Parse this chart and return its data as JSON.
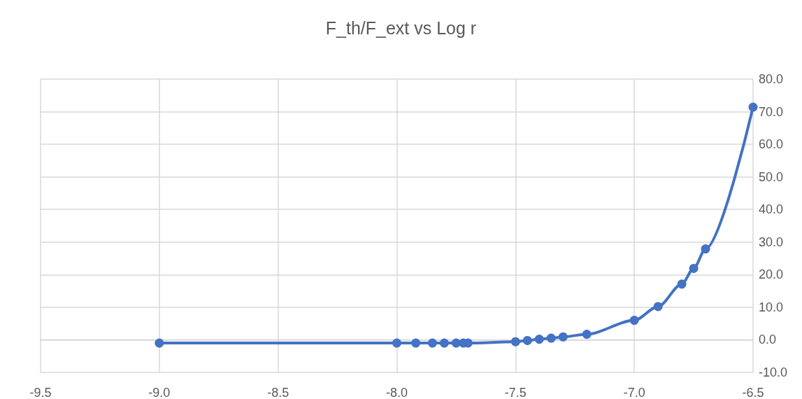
{
  "chart_data": {
    "type": "line",
    "title": "F_th/F_ext vs Log r",
    "x": [
      -9.0,
      -8.0,
      -7.92,
      -7.85,
      -7.8,
      -7.75,
      -7.72,
      -7.7,
      -7.5,
      -7.45,
      -7.4,
      -7.35,
      -7.3,
      -7.2,
      -7.0,
      -6.9,
      -6.8,
      -6.75,
      -6.7,
      -6.5
    ],
    "series": [
      {
        "color": "#4472c4",
        "values": [
          -1.0,
          -1.0,
          -1.0,
          -1.0,
          -1.0,
          -1.0,
          -1.0,
          -1.0,
          -0.6,
          -0.2,
          0.2,
          0.5,
          0.9,
          1.7,
          6.0,
          10.2,
          17.1,
          21.9,
          27.9,
          71.4
        ]
      }
    ],
    "xlim": [
      -9.5,
      -6.5
    ],
    "xticks": [
      -9.5,
      {
        "value": -9,
        "label": "-9.0"
      },
      -8.5,
      {
        "value": -8,
        "label": "-8.0"
      },
      -7.5,
      {
        "value": -7,
        "label": "-7.0"
      },
      -6.5
    ],
    "ylim": [
      -10,
      80
    ],
    "yticks": [
      {
        "value": -10,
        "label": "-10.0"
      },
      {
        "value": 0,
        "label": "0.0"
      },
      {
        "value": 10,
        "label": "10.0"
      },
      {
        "value": 20,
        "label": "20.0"
      },
      {
        "value": 30,
        "label": "30.0"
      },
      {
        "value": 40,
        "label": "40.0"
      },
      {
        "value": 50,
        "label": "50.0"
      },
      {
        "value": 60,
        "label": "60.0"
      },
      {
        "value": 70,
        "label": "70.0"
      },
      {
        "value": 80,
        "label": "80.0"
      }
    ],
    "grid": true,
    "marker": "circle",
    "line_style": "solid"
  }
}
